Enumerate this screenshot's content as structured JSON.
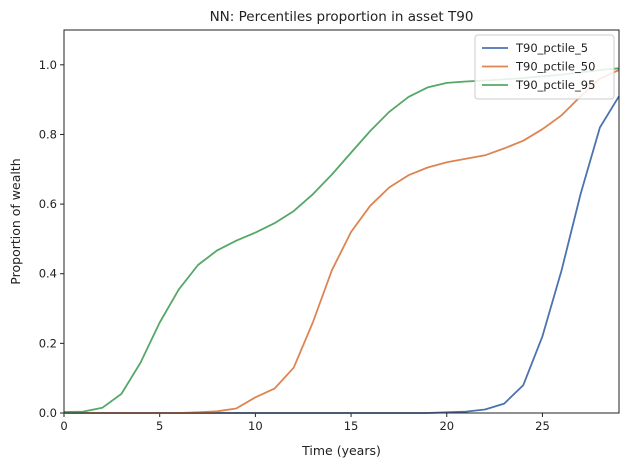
{
  "chart_data": {
    "type": "line",
    "title": "NN: Percentiles proportion in asset T90",
    "xlabel": "Time (years)",
    "ylabel": "Proportion of wealth",
    "xlim": [
      0,
      29
    ],
    "ylim": [
      0,
      1.1
    ],
    "x_ticks": [
      0,
      5,
      10,
      15,
      20,
      25
    ],
    "y_ticks": [
      0.0,
      0.2,
      0.4,
      0.6,
      0.8,
      1.0
    ],
    "x_tick_labels": [
      "0",
      "5",
      "10",
      "15",
      "20",
      "25"
    ],
    "y_tick_labels": [
      "0.0",
      "0.2",
      "0.4",
      "0.6",
      "0.8",
      "1.0"
    ],
    "grid": false,
    "legend_position": "top-right",
    "x": [
      0,
      1,
      2,
      3,
      4,
      5,
      6,
      7,
      8,
      9,
      10,
      11,
      12,
      13,
      14,
      15,
      16,
      17,
      18,
      19,
      20,
      21,
      22,
      23,
      24,
      25,
      26,
      27,
      28,
      29
    ],
    "series": [
      {
        "name": "T90_pctile_5",
        "color": "#4c72b0",
        "values": [
          0,
          0,
          0,
          0,
          0,
          0,
          0,
          0,
          0,
          0,
          0,
          0,
          0,
          0,
          0,
          0,
          0,
          0,
          0,
          0,
          0.002,
          0.004,
          0.01,
          0.027,
          0.08,
          0.22,
          0.41,
          0.63,
          0.82,
          0.91
        ]
      },
      {
        "name": "T90_pctile_50",
        "color": "#dd8452",
        "values": [
          0,
          0,
          0,
          0,
          0,
          0,
          0,
          0.002,
          0.005,
          0.013,
          0.045,
          0.07,
          0.13,
          0.26,
          0.41,
          0.52,
          0.595,
          0.648,
          0.683,
          0.705,
          0.72,
          0.73,
          0.74,
          0.76,
          0.782,
          0.815,
          0.855,
          0.91,
          0.96,
          0.985
        ]
      },
      {
        "name": "T90_pctile_95",
        "color": "#55a868",
        "values": [
          0.003,
          0.004,
          0.015,
          0.055,
          0.145,
          0.26,
          0.355,
          0.425,
          0.467,
          0.495,
          0.518,
          0.545,
          0.58,
          0.628,
          0.685,
          0.748,
          0.81,
          0.865,
          0.908,
          0.935,
          0.948,
          0.952,
          0.955,
          0.958,
          0.962,
          0.967,
          0.972,
          0.978,
          0.985,
          0.99
        ]
      }
    ]
  }
}
